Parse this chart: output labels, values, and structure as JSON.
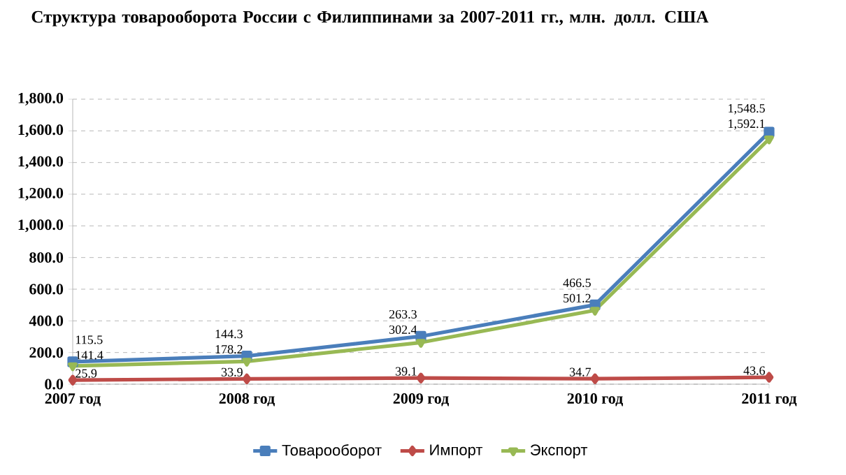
{
  "chart_data": {
    "type": "line",
    "title": "Структура товарооборота России с Филиппинами за 2007-2011 гг., млн. долл. США",
    "categories": [
      "2007 год",
      "2008 год",
      "2009 год",
      "2010 год",
      "2011 год"
    ],
    "series": [
      {
        "name": "Товарооборот",
        "color": "#4a7ebb",
        "marker": "square",
        "values": [
          141.4,
          178.2,
          302.4,
          501.2,
          1592.1
        ],
        "value_labels": [
          "141.4",
          "178.2",
          "302.4",
          "501.2",
          "1,592.1"
        ]
      },
      {
        "name": "Импорт",
        "color": "#be4b48",
        "marker": "diamond",
        "values": [
          25.9,
          33.9,
          39.1,
          34.7,
          43.6
        ],
        "value_labels": [
          "25.9",
          "33.9",
          "39.1",
          "34.7",
          "43.6"
        ]
      },
      {
        "name": "Экспорт",
        "color": "#98b954",
        "marker": "triangle",
        "values": [
          115.5,
          144.3,
          263.3,
          466.5,
          1548.5
        ],
        "value_labels": [
          "115.5",
          "144.3",
          "263.3",
          "466.5",
          "1,548.5"
        ]
      }
    ],
    "ylim": [
      0,
      1800
    ],
    "yticks": [
      {
        "value": 0,
        "label": "0.0"
      },
      {
        "value": 200,
        "label": "200.0"
      },
      {
        "value": 400,
        "label": "400.0"
      },
      {
        "value": 600,
        "label": "600.0"
      },
      {
        "value": 800,
        "label": "800.0"
      },
      {
        "value": 1000,
        "label": "1,000.0"
      },
      {
        "value": 1200,
        "label": "1,200.0"
      },
      {
        "value": 1400,
        "label": "1,400.0"
      },
      {
        "value": 1600,
        "label": "1,600.0"
      },
      {
        "value": 1800,
        "label": "1,800.0"
      }
    ],
    "grid": "y",
    "legend": "bottom",
    "line_style": "solid"
  }
}
